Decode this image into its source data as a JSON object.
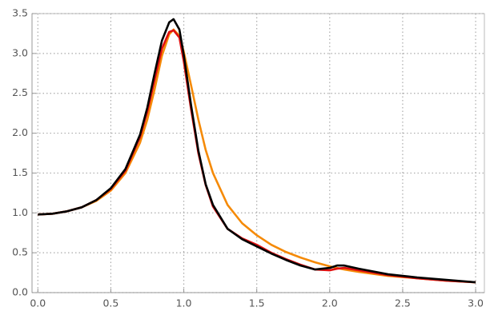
{
  "chart_data": {
    "type": "line",
    "x": [
      0,
      0.1,
      0.2,
      0.3,
      0.4,
      0.5,
      0.6,
      0.7,
      0.75,
      0.8,
      0.85,
      0.9,
      0.93,
      0.97,
      1.0,
      1.05,
      1.1,
      1.15,
      1.2,
      1.3,
      1.4,
      1.5,
      1.6,
      1.7,
      1.8,
      1.9,
      2.0,
      2.05,
      2.1,
      2.2,
      2.4,
      2.6,
      2.8,
      3.0
    ],
    "series": [
      {
        "color": "#f58a07",
        "values": [
          0.98,
          0.99,
          1.02,
          1.07,
          1.15,
          1.28,
          1.5,
          1.88,
          2.17,
          2.55,
          2.97,
          3.24,
          3.3,
          3.22,
          3.02,
          2.6,
          2.17,
          1.79,
          1.5,
          1.1,
          0.87,
          0.72,
          0.6,
          0.51,
          0.44,
          0.38,
          0.33,
          0.31,
          0.29,
          0.26,
          0.21,
          0.18,
          0.15,
          0.13
        ]
      },
      {
        "color": "#e01010",
        "values": [
          0.98,
          0.99,
          1.02,
          1.07,
          1.16,
          1.3,
          1.53,
          1.95,
          2.27,
          2.67,
          3.06,
          3.27,
          3.29,
          3.2,
          2.9,
          2.3,
          1.75,
          1.35,
          1.08,
          0.8,
          0.68,
          0.6,
          0.5,
          0.42,
          0.35,
          0.29,
          0.28,
          0.3,
          0.31,
          0.28,
          0.22,
          0.18,
          0.15,
          0.13
        ]
      },
      {
        "color": "#000000",
        "values": [
          0.98,
          0.99,
          1.02,
          1.07,
          1.16,
          1.31,
          1.55,
          1.98,
          2.32,
          2.75,
          3.16,
          3.39,
          3.43,
          3.3,
          2.98,
          2.35,
          1.78,
          1.36,
          1.1,
          0.8,
          0.67,
          0.58,
          0.49,
          0.41,
          0.34,
          0.29,
          0.31,
          0.34,
          0.34,
          0.3,
          0.23,
          0.19,
          0.16,
          0.13
        ]
      }
    ],
    "xlim": [
      -0.04,
      3.06
    ],
    "ylim": [
      0,
      3.5
    ],
    "xticks": [
      {
        "value": 0,
        "label": "0.0"
      },
      {
        "value": 0.5,
        "label": "0.5"
      },
      {
        "value": 1,
        "label": "1.0"
      },
      {
        "value": 1.5,
        "label": "1.5"
      },
      {
        "value": 2,
        "label": "2.0"
      },
      {
        "value": 2.5,
        "label": "2.5"
      },
      {
        "value": 3,
        "label": "3.0"
      }
    ],
    "yticks": [
      {
        "value": 0,
        "label": "0.0"
      },
      {
        "value": 0.5,
        "label": "0.5"
      },
      {
        "value": 1,
        "label": "1.0"
      },
      {
        "value": 1.5,
        "label": "1.5"
      },
      {
        "value": 2,
        "label": "2.0"
      },
      {
        "value": 2.5,
        "label": "2.5"
      },
      {
        "value": 3,
        "label": "3.0"
      },
      {
        "value": 3.5,
        "label": "3.5"
      }
    ],
    "grid": true
  }
}
